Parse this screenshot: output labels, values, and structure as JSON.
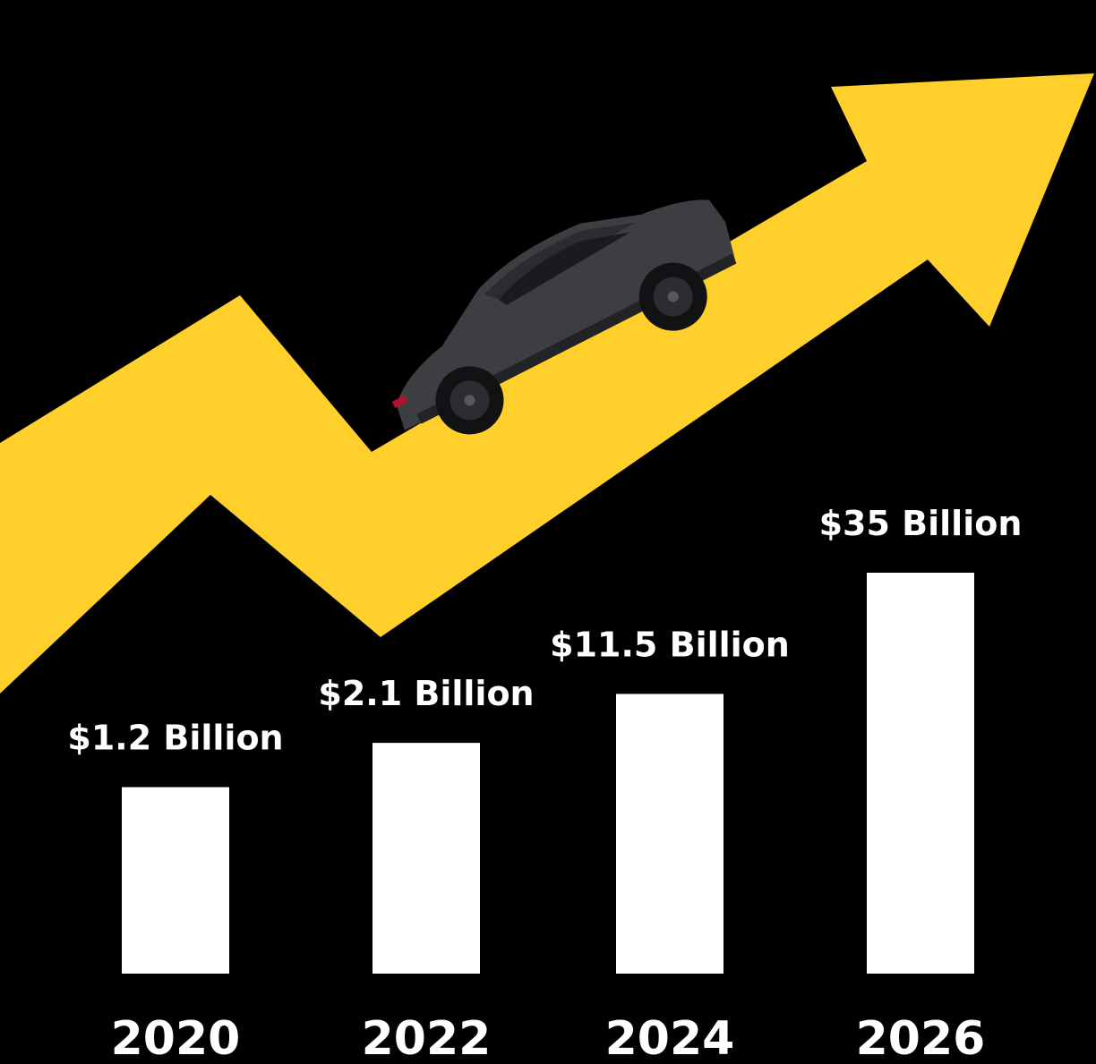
{
  "colors": {
    "background": "#000000",
    "arrow": "#ffd02b",
    "bars": "#ffffff",
    "labels": "#ffffff",
    "car_body": "#3c3e42"
  },
  "illustration": {
    "trend_arrow": "yellow-upward-zigzag-arrow",
    "vehicle": "dark-grey-suv-car"
  },
  "chart_data": {
    "type": "bar",
    "categories": [
      "2020",
      "2022",
      "2024",
      "2026"
    ],
    "values": [
      8.0,
      9.9,
      12.0,
      17.2
    ],
    "value_labels": [
      "$1.2 Billion",
      "$2.1 Billion",
      "$11.5 Billion",
      "$35 Billion"
    ],
    "title": "",
    "xlabel": "",
    "ylabel": "",
    "ylim": [
      0,
      17.2
    ],
    "grid": false,
    "legend": "none"
  }
}
